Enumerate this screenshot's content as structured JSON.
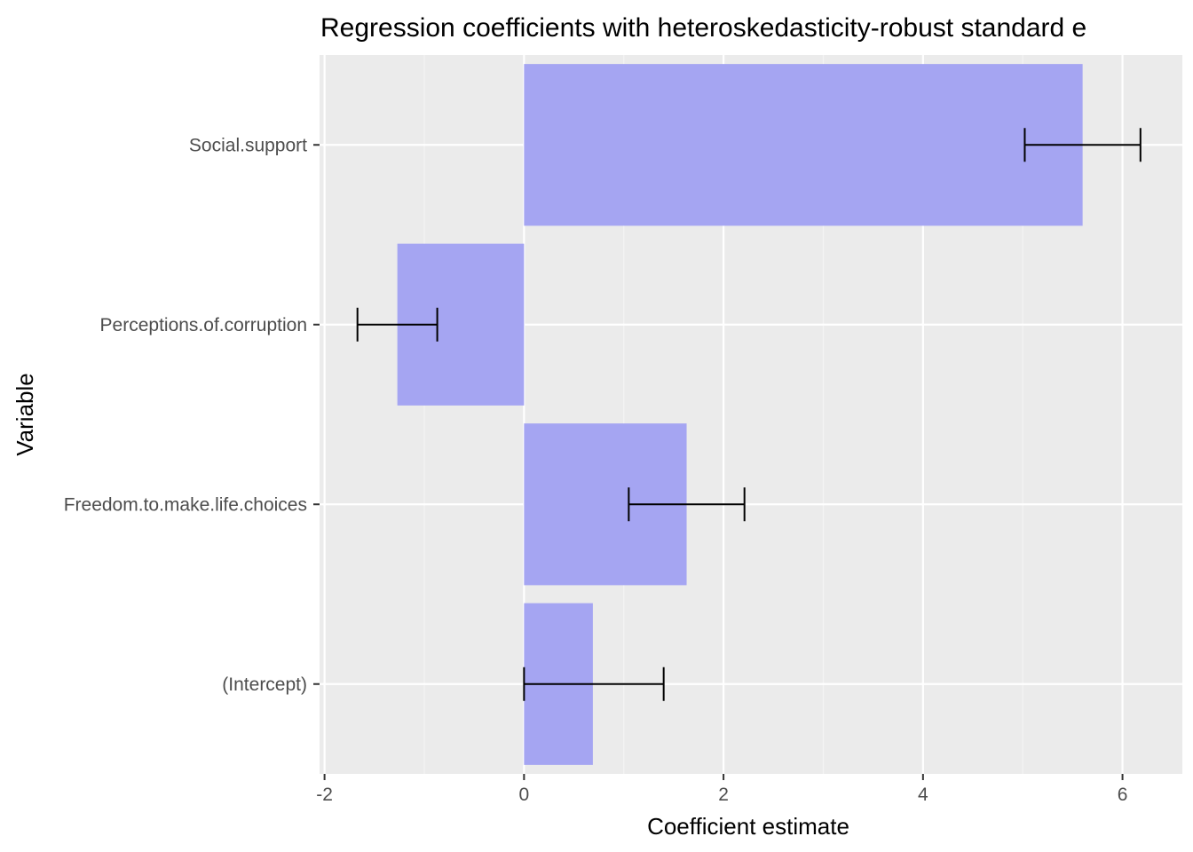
{
  "chart_data": {
    "type": "bar",
    "orientation": "horizontal",
    "title": "Regression coefficients with heteroskedasticity-robust standard e",
    "xlabel": "Coefficient estimate",
    "ylabel": "Variable",
    "categories": [
      "(Intercept)",
      "Freedom.to.make.life.choices",
      "Perceptions.of.corruption",
      "Social.support"
    ],
    "values": [
      0.69,
      1.63,
      -1.27,
      5.6
    ],
    "error_low": [
      0.0,
      1.05,
      -1.67,
      5.02
    ],
    "error_high": [
      1.4,
      2.21,
      -0.87,
      6.18
    ],
    "xlim": [
      -2.05,
      6.6
    ],
    "xticks": [
      -2,
      0,
      2,
      4,
      6
    ],
    "xtick_labels": [
      "-2",
      "0",
      "2",
      "4",
      "6"
    ],
    "grid": true,
    "colors": {
      "bar_fill": "#a5a5f2",
      "panel_background": "#ebebeb",
      "grid_major": "#ffffff",
      "grid_minor": "#f4f4f4",
      "error_bar": "#000000"
    }
  }
}
